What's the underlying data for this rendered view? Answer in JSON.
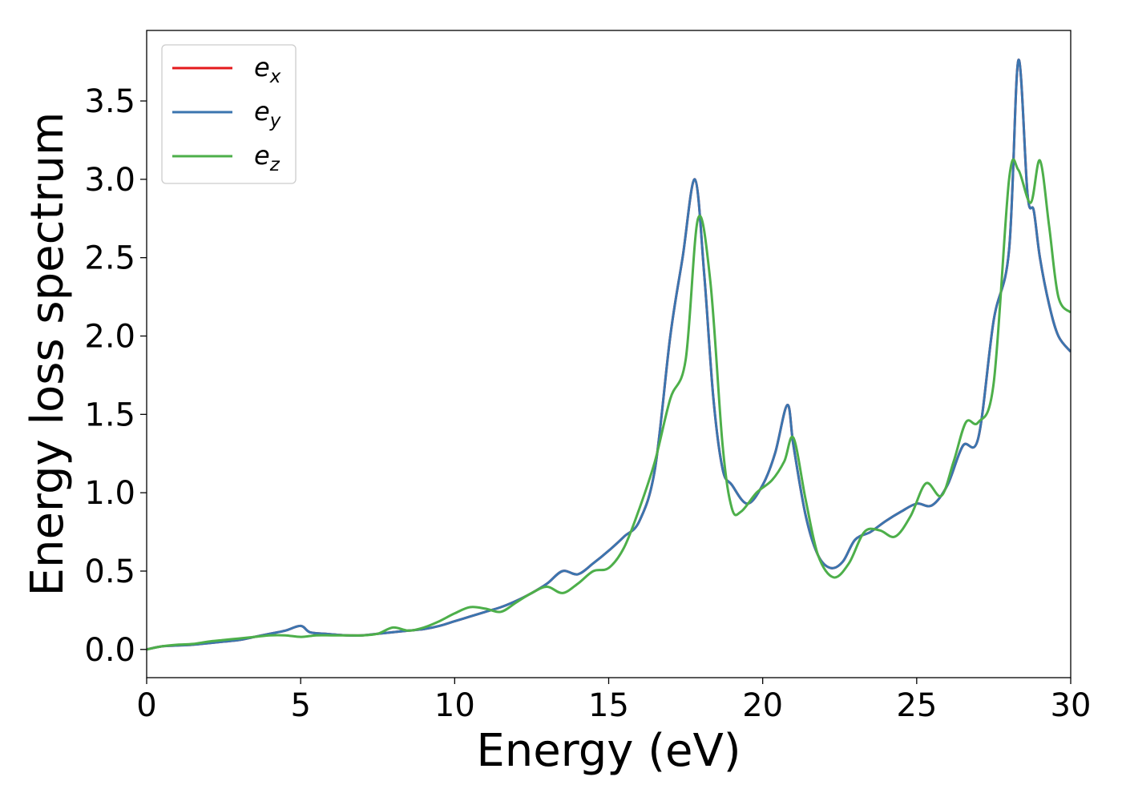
{
  "chart_data": {
    "type": "line",
    "title": "",
    "xlabel": "Energy (eV)",
    "ylabel": "Energy loss spectrum",
    "xlim": [
      0,
      30
    ],
    "ylim": [
      -0.18,
      3.95
    ],
    "xticks": [
      0,
      5,
      10,
      15,
      20,
      25,
      30
    ],
    "xtick_labels": [
      "0",
      "5",
      "10",
      "15",
      "20",
      "25",
      "30"
    ],
    "yticks": [
      0.0,
      0.5,
      1.0,
      1.5,
      2.0,
      2.5,
      3.0,
      3.5
    ],
    "ytick_labels": [
      "0.0",
      "0.5",
      "1.0",
      "1.5",
      "2.0",
      "2.5",
      "3.0",
      "3.5"
    ],
    "grid": false,
    "legend_position": "top-left",
    "series": [
      {
        "name": "e",
        "subscript": "x",
        "color": "#e41a1c",
        "x": [
          0,
          0.5,
          1,
          1.5,
          2,
          2.5,
          3,
          3.5,
          4,
          4.5,
          5,
          5.3,
          5.8,
          6.5,
          7,
          7.5,
          8,
          8.5,
          9,
          9.5,
          10,
          10.5,
          11,
          11.5,
          12,
          12.5,
          13,
          13.5,
          14,
          14.5,
          15,
          15.5,
          16,
          16.5,
          17,
          17.4,
          17.8,
          18.1,
          18.4,
          18.7,
          19,
          19.5,
          20,
          20.4,
          20.8,
          21,
          21.4,
          21.8,
          22.2,
          22.6,
          23,
          23.5,
          24,
          24.5,
          25,
          25.5,
          26,
          26.5,
          27,
          27.5,
          28,
          28.3,
          28.6,
          28.8,
          29,
          29.3,
          29.6,
          30
        ],
        "y": [
          0,
          0.02,
          0.025,
          0.03,
          0.04,
          0.05,
          0.06,
          0.08,
          0.1,
          0.12,
          0.15,
          0.11,
          0.1,
          0.09,
          0.09,
          0.1,
          0.11,
          0.12,
          0.13,
          0.15,
          0.18,
          0.21,
          0.24,
          0.27,
          0.31,
          0.36,
          0.42,
          0.5,
          0.48,
          0.55,
          0.63,
          0.72,
          0.82,
          1.15,
          2.0,
          2.5,
          3.0,
          2.4,
          1.6,
          1.15,
          1.05,
          0.93,
          1.05,
          1.25,
          1.56,
          1.3,
          0.85,
          0.6,
          0.52,
          0.56,
          0.7,
          0.75,
          0.82,
          0.88,
          0.93,
          0.92,
          1.05,
          1.3,
          1.35,
          2.1,
          2.55,
          3.76,
          2.9,
          2.8,
          2.5,
          2.2,
          2.0,
          1.9
        ]
      },
      {
        "name": "e",
        "subscript": "y",
        "color": "#3b75af",
        "x": [
          0,
          0.5,
          1,
          1.5,
          2,
          2.5,
          3,
          3.5,
          4,
          4.5,
          5,
          5.3,
          5.8,
          6.5,
          7,
          7.5,
          8,
          8.5,
          9,
          9.5,
          10,
          10.5,
          11,
          11.5,
          12,
          12.5,
          13,
          13.5,
          14,
          14.5,
          15,
          15.5,
          16,
          16.5,
          17,
          17.4,
          17.8,
          18.1,
          18.4,
          18.7,
          19,
          19.5,
          20,
          20.4,
          20.8,
          21,
          21.4,
          21.8,
          22.2,
          22.6,
          23,
          23.5,
          24,
          24.5,
          25,
          25.5,
          26,
          26.5,
          27,
          27.5,
          28,
          28.3,
          28.6,
          28.8,
          29,
          29.3,
          29.6,
          30
        ],
        "y": [
          0,
          0.02,
          0.025,
          0.03,
          0.04,
          0.05,
          0.06,
          0.08,
          0.1,
          0.12,
          0.15,
          0.11,
          0.1,
          0.09,
          0.09,
          0.1,
          0.11,
          0.12,
          0.13,
          0.15,
          0.18,
          0.21,
          0.24,
          0.27,
          0.31,
          0.36,
          0.42,
          0.5,
          0.48,
          0.55,
          0.63,
          0.72,
          0.82,
          1.15,
          2.0,
          2.5,
          3.0,
          2.4,
          1.6,
          1.15,
          1.05,
          0.93,
          1.05,
          1.25,
          1.56,
          1.3,
          0.85,
          0.6,
          0.52,
          0.56,
          0.7,
          0.75,
          0.82,
          0.88,
          0.93,
          0.92,
          1.05,
          1.3,
          1.35,
          2.1,
          2.55,
          3.76,
          2.9,
          2.8,
          2.5,
          2.2,
          2.0,
          1.9
        ]
      },
      {
        "name": "e",
        "subscript": "z",
        "color": "#4daf4a",
        "x": [
          0,
          0.5,
          1,
          1.5,
          2,
          2.5,
          3,
          3.5,
          4,
          4.5,
          5,
          5.5,
          6,
          6.5,
          7,
          7.5,
          8,
          8.5,
          9,
          9.5,
          10,
          10.5,
          11,
          11.5,
          12,
          12.5,
          13,
          13.5,
          14,
          14.5,
          15,
          15.5,
          16,
          16.5,
          17,
          17.5,
          17.9,
          18.3,
          18.7,
          19,
          19.3,
          19.8,
          20.3,
          20.7,
          21,
          21.4,
          21.8,
          22.3,
          22.8,
          23.3,
          23.8,
          24.3,
          24.8,
          25.3,
          25.8,
          26.2,
          26.6,
          27,
          27.5,
          28,
          28.3,
          28.7,
          29,
          29.3,
          29.6,
          30
        ],
        "y": [
          0,
          0.02,
          0.03,
          0.035,
          0.05,
          0.06,
          0.07,
          0.08,
          0.09,
          0.09,
          0.08,
          0.09,
          0.09,
          0.09,
          0.09,
          0.1,
          0.14,
          0.12,
          0.14,
          0.18,
          0.23,
          0.27,
          0.26,
          0.24,
          0.3,
          0.36,
          0.4,
          0.36,
          0.42,
          0.5,
          0.52,
          0.65,
          0.9,
          1.2,
          1.6,
          1.85,
          2.75,
          2.35,
          1.3,
          0.9,
          0.88,
          1.0,
          1.08,
          1.2,
          1.35,
          0.95,
          0.6,
          0.46,
          0.55,
          0.75,
          0.76,
          0.72,
          0.85,
          1.06,
          0.98,
          1.2,
          1.45,
          1.45,
          1.7,
          3.0,
          3.06,
          2.85,
          3.12,
          2.7,
          2.25,
          2.15
        ]
      }
    ]
  }
}
